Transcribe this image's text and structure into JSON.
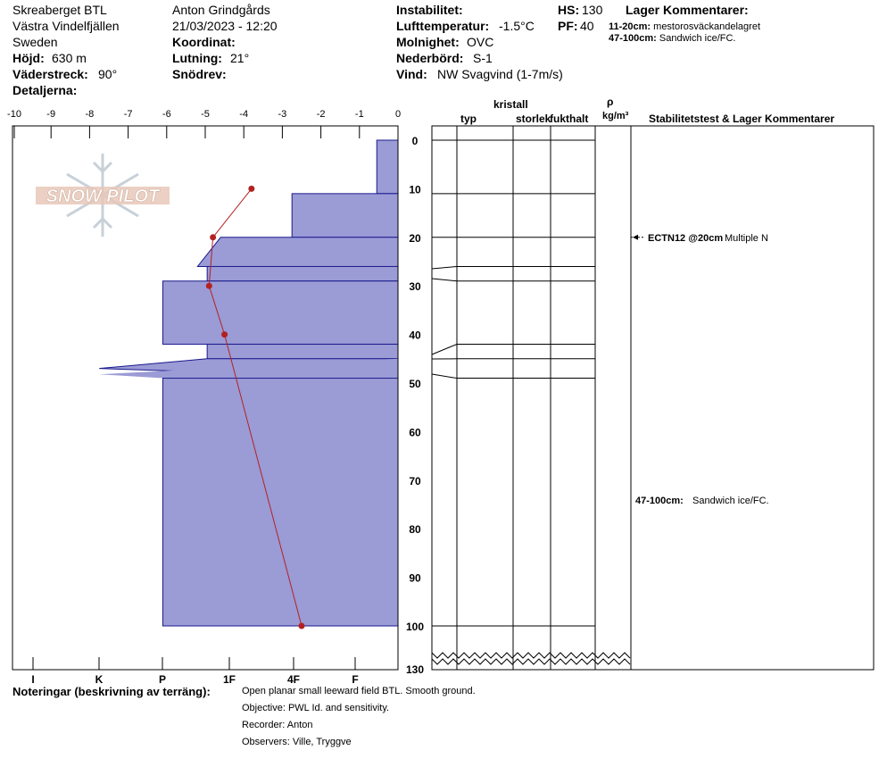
{
  "header": {
    "location": "Skreaberget BTL",
    "region": "Västra Vindelfjällen",
    "country": "Sweden",
    "elevation_label": "Höjd:",
    "elevation_value": "630 m",
    "aspect_label": "Väderstreck:",
    "aspect_value": "90°",
    "details_label": "Detaljerna:",
    "observer": "Anton Grindgårds",
    "datetime": "21/03/2023 - 12:20",
    "coord_label": "Koordinat:",
    "slope_label": "Lutning:",
    "slope_value": "21°",
    "drift_label": "Snödrev:",
    "instability_label": "Instabilitet:",
    "airtemp_label": "Lufttemperatur:",
    "airtemp_value": "-1.5°C",
    "cloud_label": "Molnighet:",
    "cloud_value": "OVC",
    "precip_label": "Nederbörd:",
    "precip_value": "S-1",
    "wind_label": "Vind:",
    "wind_value": "NW Svagvind (1-7m/s)",
    "hs_label": "HS:",
    "hs_value": "130",
    "pf_label": "PF:",
    "pf_value": "40",
    "layer_comments_title": "Lager Kommentarer:",
    "layer_comments": [
      {
        "range": "11-20cm:",
        "text": "mestorosväckandelagret"
      },
      {
        "range": "47-100cm:",
        "text": "Sandwich ice/FC."
      }
    ]
  },
  "columns": {
    "crystal": "kristall",
    "type": "typ",
    "size": "storlek",
    "moisture": "fukthalt",
    "rho": "ρ",
    "density_unit": "kg/m³",
    "stability_title": "Stabilitetstest & Lager Kommentarer"
  },
  "logo_text": "SNOW PILOT",
  "chart_data": {
    "type": "area",
    "title": "",
    "temperature_axis": {
      "ticks": [
        "-10",
        "-9",
        "-8",
        "-7",
        "-6",
        "-5",
        "-4",
        "-3",
        "-2",
        "-1",
        "0"
      ],
      "range": [
        -10,
        0
      ]
    },
    "hardness_axis": {
      "ticks": [
        "I",
        "K",
        "P",
        "1F",
        "4F",
        "F"
      ]
    },
    "depth_axis": {
      "ticks": [
        "0",
        "10",
        "20",
        "30",
        "40",
        "50",
        "60",
        "70",
        "80",
        "90",
        "100"
      ],
      "bottom_label": "130",
      "range_cm": [
        0,
        100
      ],
      "total_depth_cm": 130
    },
    "hardness_profile_cm": [
      {
        "top": 0,
        "bottom": 11,
        "hardness_width": 0.55
      },
      {
        "top": 11,
        "bottom": 20,
        "hardness_width": 2.75
      },
      {
        "top": 20,
        "bottom": 26,
        "hardness_width": 5.2,
        "slanted_top_width": 4.6
      },
      {
        "top": 26,
        "bottom": 29,
        "hardness_width": 4.95
      },
      {
        "top": 29,
        "bottom": 42,
        "hardness_width": 6.1
      },
      {
        "top": 42,
        "bottom": 45,
        "hardness_width": 4.95
      },
      {
        "top": 45,
        "bottom": 49,
        "hardness_width": 7.75,
        "spike": true
      },
      {
        "top": 49,
        "bottom": 100,
        "hardness_width": 6.1
      }
    ],
    "temperature_profile": [
      {
        "depth": 10,
        "temp": -3.8
      },
      {
        "depth": 20,
        "temp": -4.8
      },
      {
        "depth": 30,
        "temp": -4.9
      },
      {
        "depth": 40,
        "temp": -4.5
      },
      {
        "depth": 100,
        "temp": -2.5
      }
    ],
    "layer_boundaries_cm": [
      0,
      11,
      20,
      26,
      29,
      42,
      45,
      49,
      100
    ],
    "stability_tests": [
      {
        "depth": 20,
        "label": "ECTN12 @20cm",
        "result": "Multiple N"
      }
    ],
    "layer_notes": [
      {
        "depth": 75,
        "range": "47-100cm:",
        "text": "Sandwich ice/FC."
      }
    ]
  },
  "notes": {
    "label": "Noteringar (beskrivning av terräng):",
    "lines": [
      "Open planar small leeward field BTL. Smooth ground.",
      "Objective: PWL Id. and sensitivity.",
      "Recorder: Anton",
      "Observers: Ville, Tryggve"
    ]
  }
}
